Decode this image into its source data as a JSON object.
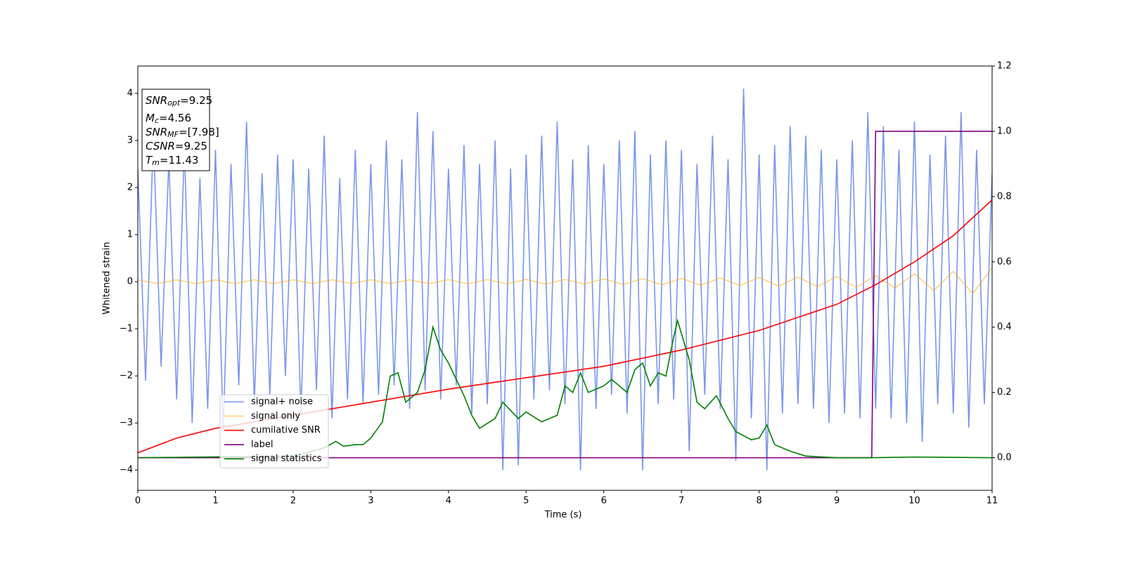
{
  "chart_data": {
    "type": "line",
    "xlabel": "Time (s)",
    "ylabel": "Whitened strain",
    "xlim": [
      0,
      11
    ],
    "xticks": [
      0,
      1,
      2,
      3,
      4,
      5,
      6,
      7,
      8,
      9,
      10,
      11
    ],
    "ylim": [
      -4.43,
      4.58
    ],
    "yticks": [
      -4,
      -3,
      -2,
      -1,
      0,
      1,
      2,
      3,
      4
    ],
    "y2lim": [
      -0.1,
      1.2
    ],
    "y2ticks": [
      {
        "value": 0,
        "label": "0.0"
      },
      {
        "value": 0.2,
        "label": "0.2"
      },
      {
        "value": 0.4,
        "label": "0.4"
      },
      {
        "value": 0.6,
        "label": "0.6"
      },
      {
        "value": 0.8,
        "label": "0.8"
      },
      {
        "value": 1.0,
        "label": "1.0"
      },
      {
        "value": 1.2,
        "label": "1.2"
      }
    ],
    "annotations": [
      {
        "text": "SNR",
        "sub": "opt",
        "rest": "=9.25"
      },
      {
        "text": "M",
        "sub": "c",
        "rest": "=4.56"
      },
      {
        "text": "SNR",
        "sub": "MF",
        "rest": "=[7.98]"
      },
      {
        "text": "CSNR",
        "rest": "=9.25"
      },
      {
        "text": "T",
        "sub": "m",
        "rest": "=11.43"
      }
    ],
    "series": [
      {
        "name": "signal+ noise",
        "color": "#4169e1",
        "opacity": 0.7,
        "x": [
          0,
          0.1,
          0.2,
          0.3,
          0.4,
          0.5,
          0.6,
          0.7,
          0.8,
          0.9,
          1,
          1.1,
          1.2,
          1.3,
          1.4,
          1.5,
          1.6,
          1.7,
          1.8,
          1.9,
          2,
          2.1,
          2.2,
          2.3,
          2.4,
          2.5,
          2.6,
          2.7,
          2.8,
          2.9,
          3,
          3.1,
          3.2,
          3.3,
          3.4,
          3.5,
          3.6,
          3.7,
          3.8,
          3.9,
          4,
          4.1,
          4.2,
          4.3,
          4.4,
          4.5,
          4.6,
          4.7,
          4.8,
          4.9,
          5,
          5.1,
          5.2,
          5.3,
          5.4,
          5.5,
          5.6,
          5.7,
          5.8,
          5.9,
          6,
          6.1,
          6.2,
          6.3,
          6.4,
          6.5,
          6.6,
          6.7,
          6.8,
          6.9,
          7,
          7.1,
          7.2,
          7.3,
          7.4,
          7.5,
          7.6,
          7.7,
          7.8,
          7.9,
          8,
          8.1,
          8.2,
          8.3,
          8.4,
          8.5,
          8.6,
          8.7,
          8.8,
          8.9,
          9,
          9.1,
          9.2,
          9.3,
          9.4,
          9.5,
          9.6,
          9.7,
          9.8,
          9.9,
          10,
          10.1,
          10.2,
          10.3,
          10.4,
          10.5,
          10.6,
          10.7,
          10.8,
          10.9,
          11
        ],
        "values": [
          2.4,
          -2.1,
          3.1,
          -1.8,
          2.6,
          -2.5,
          2.9,
          -3.0,
          2.2,
          -2.7,
          2.8,
          -3.2,
          2.5,
          -2.2,
          3.4,
          -2.6,
          2.3,
          -2.4,
          2.7,
          -2.0,
          2.6,
          -2.8,
          2.4,
          -2.3,
          3.1,
          -2.9,
          2.2,
          -2.5,
          2.8,
          -2.6,
          2.5,
          -2.4,
          3.0,
          -2.2,
          2.6,
          -2.7,
          3.6,
          -2.3,
          3.2,
          -2.5,
          2.4,
          -2.2,
          2.9,
          -2.8,
          2.5,
          -2.6,
          3.0,
          -4.0,
          2.4,
          -3.9,
          2.7,
          -2.5,
          3.1,
          -2.3,
          3.4,
          -2.6,
          2.6,
          -4.0,
          2.9,
          -2.7,
          2.5,
          -2.4,
          3.0,
          -2.8,
          3.2,
          -4.0,
          2.7,
          -2.6,
          3.0,
          -2.5,
          2.8,
          -3.6,
          2.5,
          -2.4,
          3.1,
          -2.7,
          2.6,
          -3.8,
          4.1,
          -2.9,
          2.7,
          -4.0,
          2.9,
          -2.8,
          3.3,
          -2.6,
          3.1,
          -2.7,
          2.8,
          -3.0,
          2.6,
          -2.8,
          3.0,
          -2.9,
          3.6,
          -2.7,
          3.3,
          -2.9,
          2.8,
          -3.0,
          3.4,
          -3.4,
          2.7,
          -2.6,
          3.1,
          -2.8,
          3.6,
          -3.1,
          2.8,
          -2.6,
          2.3
        ]
      },
      {
        "name": "signal only",
        "color": "#ffa500",
        "opacity": 0.5,
        "x": [
          0,
          0.25,
          0.5,
          0.75,
          1,
          1.25,
          1.5,
          1.75,
          2,
          2.25,
          2.5,
          2.75,
          3,
          3.25,
          3.5,
          3.75,
          4,
          4.25,
          4.5,
          4.75,
          5,
          5.25,
          5.5,
          5.75,
          6,
          6.25,
          6.5,
          6.75,
          7,
          7.25,
          7.5,
          7.75,
          8,
          8.25,
          8.5,
          8.75,
          9,
          9.25,
          9.5,
          9.75,
          10,
          10.25,
          10.5,
          10.75,
          11
        ],
        "values": [
          0.04,
          -0.04,
          0.04,
          -0.04,
          0.04,
          -0.04,
          0.04,
          -0.04,
          0.04,
          -0.04,
          0.04,
          -0.04,
          0.04,
          -0.04,
          0.04,
          -0.04,
          0.045,
          -0.045,
          0.045,
          -0.045,
          0.05,
          -0.05,
          0.05,
          -0.05,
          0.06,
          -0.06,
          0.065,
          -0.065,
          0.07,
          -0.075,
          0.08,
          -0.08,
          0.09,
          -0.095,
          0.1,
          -0.105,
          0.11,
          -0.12,
          0.13,
          -0.135,
          0.17,
          -0.19,
          0.22,
          -0.25,
          0.29
        ]
      },
      {
        "name": "cumilative SNR",
        "color": "#ff0000",
        "axis": "y2",
        "x": [
          0,
          0.5,
          1,
          2,
          3,
          4,
          5,
          6,
          7,
          8,
          9,
          9.5,
          10,
          10.5,
          11
        ],
        "values": [
          0.015,
          0.06,
          0.09,
          0.13,
          0.17,
          0.21,
          0.245,
          0.28,
          0.33,
          0.39,
          0.47,
          0.53,
          0.6,
          0.68,
          0.79
        ]
      },
      {
        "name": "label",
        "color": "#800080",
        "axis": "y2",
        "x": [
          0,
          9.45,
          9.5,
          11
        ],
        "values": [
          0,
          0,
          1,
          1
        ]
      },
      {
        "name": "signal statistics",
        "color": "#008000",
        "axis": "y2",
        "x": [
          0,
          2,
          2.4,
          2.55,
          2.65,
          2.8,
          2.9,
          3.0,
          3.15,
          3.25,
          3.35,
          3.45,
          3.6,
          3.7,
          3.8,
          3.9,
          4.0,
          4.1,
          4.2,
          4.3,
          4.4,
          4.6,
          4.7,
          4.9,
          5.0,
          5.2,
          5.4,
          5.5,
          5.6,
          5.7,
          5.8,
          6.0,
          6.1,
          6.3,
          6.4,
          6.5,
          6.6,
          6.7,
          6.8,
          6.9,
          6.95,
          7.1,
          7.2,
          7.3,
          7.45,
          7.6,
          7.7,
          7.9,
          8.0,
          8.1,
          8.2,
          8.4,
          8.6,
          9.0,
          9.45,
          10.0,
          11
        ],
        "values": [
          0,
          0.005,
          0.03,
          0.05,
          0.035,
          0.04,
          0.04,
          0.06,
          0.11,
          0.25,
          0.26,
          0.17,
          0.2,
          0.27,
          0.4,
          0.33,
          0.29,
          0.24,
          0.19,
          0.13,
          0.09,
          0.12,
          0.17,
          0.12,
          0.14,
          0.11,
          0.13,
          0.22,
          0.2,
          0.26,
          0.2,
          0.22,
          0.24,
          0.2,
          0.27,
          0.29,
          0.22,
          0.26,
          0.25,
          0.37,
          0.42,
          0.3,
          0.17,
          0.15,
          0.19,
          0.12,
          0.08,
          0.055,
          0.06,
          0.1,
          0.04,
          0.02,
          0.005,
          0,
          0,
          0.002,
          0
        ]
      }
    ]
  }
}
